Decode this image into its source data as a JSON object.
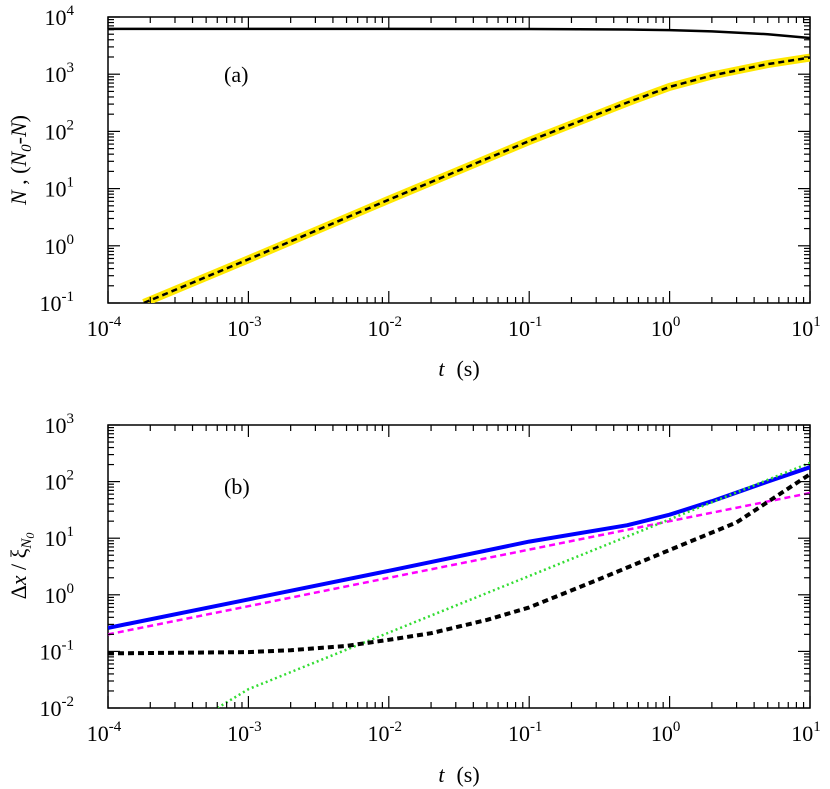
{
  "chart_data": [
    {
      "type": "line",
      "panel_label": "(a)",
      "xlabel": "t",
      "xlabel_unit": "(s)",
      "ylabel": "N , (N0-N)",
      "x_scale": "log",
      "y_scale": "log",
      "xlim": [
        0.0001,
        10
      ],
      "ylim": [
        0.1,
        10000
      ],
      "x_ticks": [
        {
          "base": "10",
          "exp": "-4",
          "value": 0.0001
        },
        {
          "base": "10",
          "exp": "-3",
          "value": 0.001
        },
        {
          "base": "10",
          "exp": "-2",
          "value": 0.01
        },
        {
          "base": "10",
          "exp": "-1",
          "value": 0.1
        },
        {
          "base": "10",
          "exp": "0",
          "value": 1
        },
        {
          "base": "10",
          "exp": "1",
          "value": 10
        }
      ],
      "y_ticks": [
        {
          "base": "10",
          "exp": "-1",
          "value": 0.1
        },
        {
          "base": "10",
          "exp": "0",
          "value": 1
        },
        {
          "base": "10",
          "exp": "1",
          "value": 10
        },
        {
          "base": "10",
          "exp": "2",
          "value": 100
        },
        {
          "base": "10",
          "exp": "3",
          "value": 1000
        },
        {
          "base": "10",
          "exp": "4",
          "value": 10000
        }
      ],
      "grid": false,
      "series": [
        {
          "color": "#000000",
          "style": "solid",
          "width": 2.5,
          "x": [
            0.0001,
            0.001,
            0.01,
            0.1,
            0.5,
            1,
            2,
            5,
            10
          ],
          "y": [
            6200,
            6200,
            6200,
            6180,
            6050,
            5900,
            5600,
            5000,
            4300
          ]
        },
        {
          "color": "#ffe800",
          "style": "solid",
          "width": 8,
          "x": [
            0.00018,
            0.001,
            0.01,
            0.1,
            0.5,
            1,
            2,
            5,
            10
          ],
          "y": [
            0.1,
            0.58,
            6.4,
            68,
            320,
            600,
            950,
            1500,
            1950
          ]
        },
        {
          "color": "#000000",
          "style": "dashed",
          "width": 2.5,
          "x": [
            0.00018,
            0.001,
            0.01,
            0.1,
            0.5,
            1,
            2,
            5,
            10
          ],
          "y": [
            0.1,
            0.58,
            6.4,
            68,
            320,
            600,
            950,
            1500,
            1950
          ]
        }
      ]
    },
    {
      "type": "line",
      "panel_label": "(b)",
      "xlabel": "t",
      "xlabel_unit": "(s)",
      "ylabel": "Δx / ξN0",
      "x_scale": "log",
      "y_scale": "log",
      "xlim": [
        0.0001,
        10
      ],
      "ylim": [
        0.01,
        1000
      ],
      "x_ticks": [
        {
          "base": "10",
          "exp": "-4",
          "value": 0.0001
        },
        {
          "base": "10",
          "exp": "-3",
          "value": 0.001
        },
        {
          "base": "10",
          "exp": "-2",
          "value": 0.01
        },
        {
          "base": "10",
          "exp": "-1",
          "value": 0.1
        },
        {
          "base": "10",
          "exp": "0",
          "value": 1
        },
        {
          "base": "10",
          "exp": "1",
          "value": 10
        }
      ],
      "y_ticks": [
        {
          "base": "10",
          "exp": "-2",
          "value": 0.01
        },
        {
          "base": "10",
          "exp": "-1",
          "value": 0.1
        },
        {
          "base": "10",
          "exp": "0",
          "value": 1
        },
        {
          "base": "10",
          "exp": "1",
          "value": 10
        },
        {
          "base": "10",
          "exp": "2",
          "value": 100
        },
        {
          "base": "10",
          "exp": "3",
          "value": 1000
        }
      ],
      "grid": false,
      "series": [
        {
          "color": "#0000ff",
          "style": "solid",
          "width": 4,
          "x": [
            0.0001,
            0.001,
            0.01,
            0.1,
            0.5,
            1,
            2,
            5,
            10
          ],
          "y": [
            0.26,
            0.83,
            2.65,
            8.7,
            17,
            26,
            45,
            100,
            180
          ]
        },
        {
          "color": "#ff00ff",
          "style": "dashed",
          "width": 2.5,
          "x": [
            0.0001,
            0.001,
            0.01,
            0.1,
            1,
            10
          ],
          "y": [
            0.2,
            0.63,
            2.0,
            6.3,
            20,
            63
          ]
        },
        {
          "color": "#33dd33",
          "style": "dotted",
          "width": 2.5,
          "x": [
            0.0006,
            0.001,
            0.01,
            0.1,
            1,
            10
          ],
          "y": [
            0.01,
            0.0215,
            0.215,
            2.15,
            21.5,
            215
          ]
        },
        {
          "color": "#000000",
          "style": "dashed",
          "width": 4,
          "x": [
            0.0001,
            0.001,
            0.002,
            0.005,
            0.01,
            0.02,
            0.05,
            0.1,
            0.3,
            1,
            3,
            10
          ],
          "y": [
            0.092,
            0.097,
            0.105,
            0.125,
            0.16,
            0.21,
            0.36,
            0.6,
            1.8,
            6.2,
            19,
            135
          ]
        }
      ]
    }
  ]
}
